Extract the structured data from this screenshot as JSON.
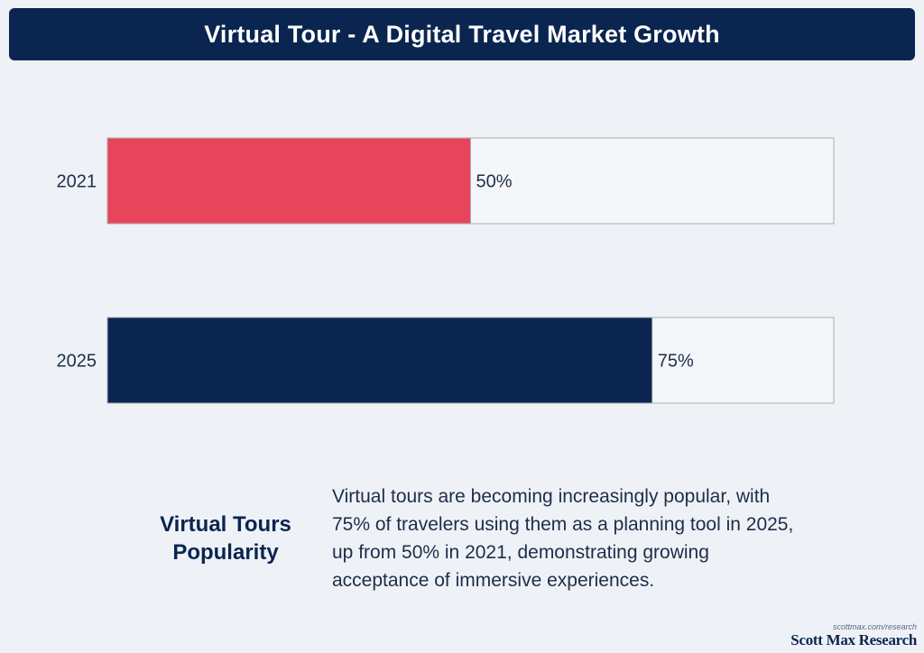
{
  "header": {
    "title": "Virtual Tour - A Digital Travel Market Growth"
  },
  "chart_data": {
    "type": "bar",
    "orientation": "horizontal",
    "title": "Virtual Tour - A Digital Travel Market Growth",
    "categories": [
      "2021",
      "2025"
    ],
    "values": [
      50,
      75
    ],
    "value_labels": [
      "50%",
      "75%"
    ],
    "xlim": [
      0,
      100
    ],
    "xlabel": "",
    "ylabel": "",
    "grid": false,
    "colors": [
      "#e8455c",
      "#0a2550"
    ],
    "track_color": "#f4f6f9"
  },
  "summary": {
    "heading_line1": "Virtual Tours",
    "heading_line2": "Popularity",
    "text": "Virtual tours are becoming increasingly popular, with 75% of travelers using them as a planning tool in 2025, up from 50% in 2021, demonstrating growing acceptance of immersive experiences."
  },
  "footer": {
    "url": "scottmax.com/research",
    "brand": "Scott Max Research"
  }
}
